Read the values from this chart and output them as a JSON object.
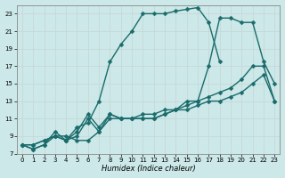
{
  "xlabel": "Humidex (Indice chaleur)",
  "bg_color": "#cce8e8",
  "grid_color": "#b0d0d0",
  "line_color": "#1a6b6b",
  "markersize": 2.5,
  "linewidth": 1.0,
  "xlim": [
    -0.5,
    23.5
  ],
  "ylim": [
    7,
    24
  ],
  "xticks": [
    0,
    1,
    2,
    3,
    4,
    5,
    6,
    7,
    8,
    9,
    10,
    11,
    12,
    13,
    14,
    15,
    16,
    17,
    18,
    19,
    20,
    21,
    22,
    23
  ],
  "yticks": [
    7,
    9,
    11,
    13,
    15,
    17,
    19,
    21,
    23
  ],
  "lines": [
    {
      "x": [
        0,
        1,
        2,
        3,
        4,
        5,
        6,
        7,
        8,
        9,
        10,
        11,
        12,
        13,
        14,
        15,
        16,
        17,
        18
      ],
      "y": [
        8,
        7.5,
        8,
        9.5,
        8.5,
        10,
        10.5,
        13,
        17.5,
        19.5,
        21,
        23,
        23,
        23,
        23.3,
        23.5,
        23.7,
        22,
        17.5
      ]
    },
    {
      "x": [
        0,
        1,
        2,
        3,
        4,
        5,
        6,
        7,
        8,
        9,
        10,
        11,
        12,
        13,
        14,
        15,
        16,
        17,
        18,
        19,
        20,
        21,
        22,
        23
      ],
      "y": [
        8,
        7.5,
        8,
        9,
        8.5,
        9.5,
        11.5,
        10,
        11.5,
        11,
        11,
        11.5,
        11.5,
        12,
        12,
        13,
        13,
        17,
        22.5,
        22.5,
        22,
        22,
        17.5,
        15
      ]
    },
    {
      "x": [
        0,
        1,
        2,
        3,
        4,
        5,
        6,
        7,
        8,
        9,
        10,
        11,
        12,
        13,
        14,
        15,
        16,
        17,
        18,
        19,
        20,
        21,
        22,
        23
      ],
      "y": [
        8,
        8,
        8.5,
        9,
        8.5,
        9,
        11,
        9.5,
        11.5,
        11,
        11,
        11,
        11,
        11.5,
        12,
        12.5,
        13,
        13.5,
        14,
        14.5,
        15.5,
        17,
        17,
        13
      ]
    },
    {
      "x": [
        0,
        1,
        2,
        3,
        4,
        5,
        6,
        7,
        8,
        9,
        10,
        11,
        12,
        13,
        14,
        15,
        16,
        17,
        18,
        19,
        20,
        21,
        22,
        23
      ],
      "y": [
        8,
        8,
        8.5,
        9,
        9,
        8.5,
        8.5,
        9.5,
        11,
        11,
        11,
        11,
        11,
        11.5,
        12,
        12,
        12.5,
        13,
        13,
        13.5,
        14,
        15,
        16,
        13
      ]
    }
  ]
}
